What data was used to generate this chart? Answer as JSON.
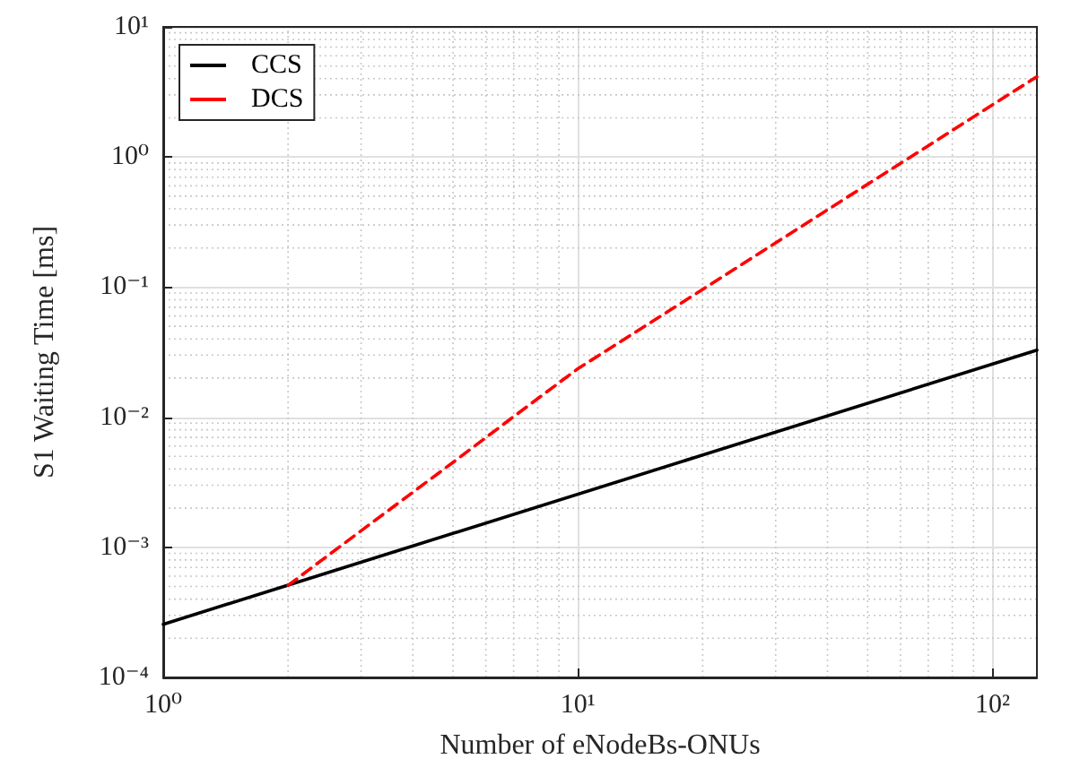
{
  "chart_data": {
    "type": "line",
    "xlabel": "Number of eNodeBs-ONUs",
    "ylabel": "S1 Waiting Time [ms]",
    "log": "xy",
    "grid": true,
    "legend": "top left",
    "marker": "none",
    "xlim": [
      1,
      128
    ],
    "xticks": [
      {
        "value": 1,
        "label": "10⁰"
      },
      {
        "value": 10,
        "label": "10¹"
      },
      {
        "value": 100,
        "label": "10²"
      }
    ],
    "ylim": [
      0.0001,
      10
    ],
    "yticks": [
      {
        "value": 0.0001,
        "label": "10⁻⁴"
      },
      {
        "value": 0.001,
        "label": "10⁻³"
      },
      {
        "value": 0.01,
        "label": "10⁻²"
      },
      {
        "value": 0.1,
        "label": "10⁻¹"
      },
      {
        "value": 1,
        "label": "10⁰"
      },
      {
        "value": 10,
        "label": "10¹"
      }
    ],
    "series": [
      {
        "name": "CCS",
        "color": "#000000",
        "line_style": "solid",
        "x": [
          1,
          2,
          128
        ],
        "values": [
          0.000256,
          0.000512,
          0.0328
        ]
      },
      {
        "name": "DCS",
        "color": "#ff0000",
        "line_style": "dashed",
        "x": [
          2,
          3,
          4,
          5,
          7,
          10,
          15,
          20,
          30,
          50,
          70,
          100,
          128
        ],
        "values": [
          0.00051,
          0.00134,
          0.00265,
          0.0045,
          0.0101,
          0.0236,
          0.0536,
          0.096,
          0.219,
          0.618,
          1.22,
          2.52,
          4.14
        ]
      }
    ]
  }
}
